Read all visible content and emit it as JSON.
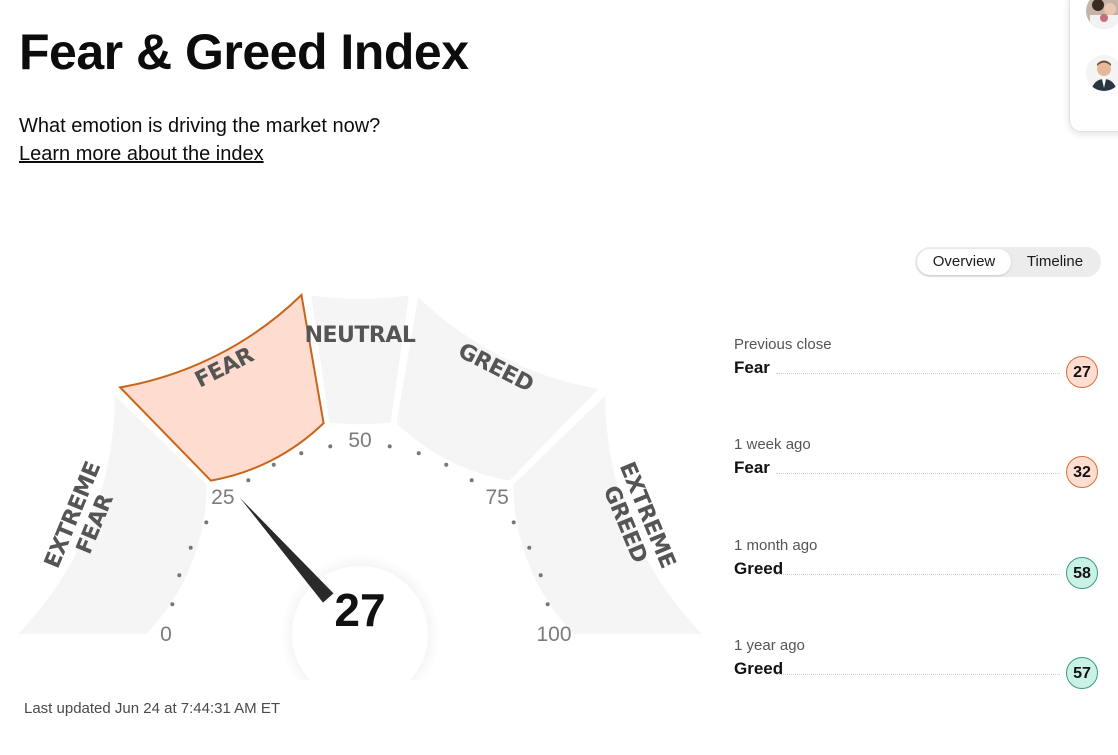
{
  "header": {
    "title": "Fear & Greed Index",
    "subtitle": "What emotion is driving the market now?",
    "learn_more": "Learn more about the index"
  },
  "toggle": {
    "overview": "Overview",
    "timeline": "Timeline",
    "active": "overview"
  },
  "gauge": {
    "value": 27,
    "value_text": "27",
    "segments": {
      "extreme_fear": [
        "EXTREME",
        "FEAR"
      ],
      "fear": "FEAR",
      "neutral": "NEUTRAL",
      "greed": "GREED",
      "extreme_greed": [
        "EXTREME",
        "GREED"
      ]
    },
    "active_segment": "fear",
    "ticks": [
      "0",
      "25",
      "50",
      "75",
      "100"
    ]
  },
  "last_updated": "Last updated Jun 24 at 7:44:31 AM ET",
  "history": [
    {
      "label": "Previous close",
      "rating": "Fear",
      "value": "27",
      "type": "fear"
    },
    {
      "label": "1 week ago",
      "rating": "Fear",
      "value": "32",
      "type": "fear"
    },
    {
      "label": "1 month ago",
      "rating": "Greed",
      "value": "58",
      "type": "greed"
    },
    {
      "label": "1 year ago",
      "rating": "Greed",
      "value": "57",
      "type": "greed"
    }
  ],
  "colors": {
    "fear_fill": "#ffdcd0",
    "fear_stroke": "#c8651b",
    "segment_fill": "#f5f5f5",
    "greed_badge": "#c9f1e6",
    "needle": "#2a2a2a"
  }
}
